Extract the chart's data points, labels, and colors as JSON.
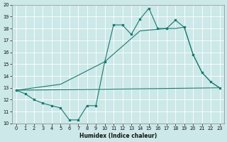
{
  "xlabel": "Humidex (Indice chaleur)",
  "line_color": "#1a7a6e",
  "bg_color": "#cce8e8",
  "grid_color": "#ffffff",
  "ylim": [
    10,
    20
  ],
  "xlim": [
    -0.5,
    23.5
  ],
  "yticks": [
    10,
    11,
    12,
    13,
    14,
    15,
    16,
    17,
    18,
    19,
    20
  ],
  "xticks": [
    0,
    1,
    2,
    3,
    4,
    5,
    6,
    7,
    8,
    9,
    10,
    11,
    12,
    13,
    14,
    15,
    16,
    17,
    18,
    19,
    20,
    21,
    22,
    23
  ],
  "curve1_x": [
    0,
    1,
    2,
    3,
    4,
    5,
    6,
    7,
    8,
    9,
    10,
    11,
    12,
    13,
    14,
    15,
    16,
    17,
    18,
    19,
    20,
    21,
    22,
    23
  ],
  "curve1_y": [
    12.8,
    12.5,
    12.0,
    11.7,
    11.5,
    11.3,
    10.3,
    10.3,
    11.5,
    11.5,
    15.2,
    18.3,
    18.3,
    17.5,
    18.8,
    19.7,
    18.0,
    18.0,
    18.7,
    18.1,
    15.8,
    14.3,
    13.5,
    13.0
  ],
  "curve2_x": [
    0,
    23
  ],
  "curve2_y": [
    12.8,
    13.0
  ],
  "curve3_x": [
    0,
    5,
    10,
    14,
    17,
    18,
    19,
    20,
    21,
    22,
    23
  ],
  "curve3_y": [
    12.8,
    13.3,
    15.2,
    17.8,
    18.0,
    18.0,
    18.1,
    15.8,
    14.3,
    13.5,
    13.0
  ]
}
